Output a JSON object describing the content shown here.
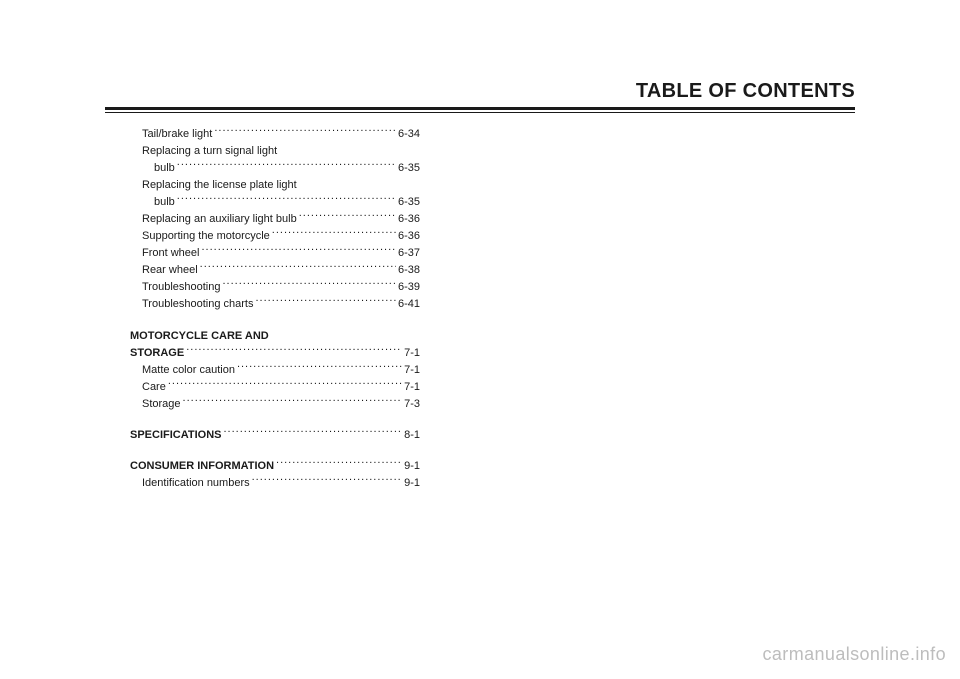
{
  "title": "TABLE OF CONTENTS",
  "watermark": "carmanualsonline.info",
  "toc": {
    "maint_cont": [
      {
        "label": "Tail/brake light",
        "page": "6-34",
        "indent": "sub"
      },
      {
        "label": "Replacing a turn signal light",
        "page": "",
        "indent": "sub",
        "nowdots": false
      },
      {
        "label": "bulb",
        "page": "6-35",
        "indent": "cont"
      },
      {
        "label": "Replacing the license plate light",
        "page": "",
        "indent": "sub",
        "nowdots": false
      },
      {
        "label": "bulb",
        "page": "6-35",
        "indent": "cont"
      },
      {
        "label": "Replacing an auxiliary light bulb",
        "page": "6-36",
        "indent": "sub"
      },
      {
        "label": "Supporting the motorcycle",
        "page": "6-36",
        "indent": "sub"
      },
      {
        "label": "Front wheel",
        "page": "6-37",
        "indent": "sub"
      },
      {
        "label": "Rear wheel",
        "page": "6-38",
        "indent": "sub"
      },
      {
        "label": "Troubleshooting",
        "page": "6-39",
        "indent": "sub"
      },
      {
        "label": "Troubleshooting charts",
        "page": "6-41",
        "indent": "sub"
      }
    ],
    "care_header1": "MOTORCYCLE CARE AND",
    "care_header2": {
      "label": "STORAGE",
      "page": "7-1"
    },
    "care_items": [
      {
        "label": "Matte color caution",
        "page": "7-1",
        "indent": "sub"
      },
      {
        "label": "Care",
        "page": "7-1",
        "indent": "sub"
      },
      {
        "label": "Storage",
        "page": "7-3",
        "indent": "sub"
      }
    ],
    "specs": {
      "label": "SPECIFICATIONS",
      "page": "8-1"
    },
    "consumer": {
      "label": "CONSUMER INFORMATION",
      "page": "9-1"
    },
    "consumer_items": [
      {
        "label": "Identification numbers",
        "page": "9-1",
        "indent": "sub"
      }
    ]
  }
}
